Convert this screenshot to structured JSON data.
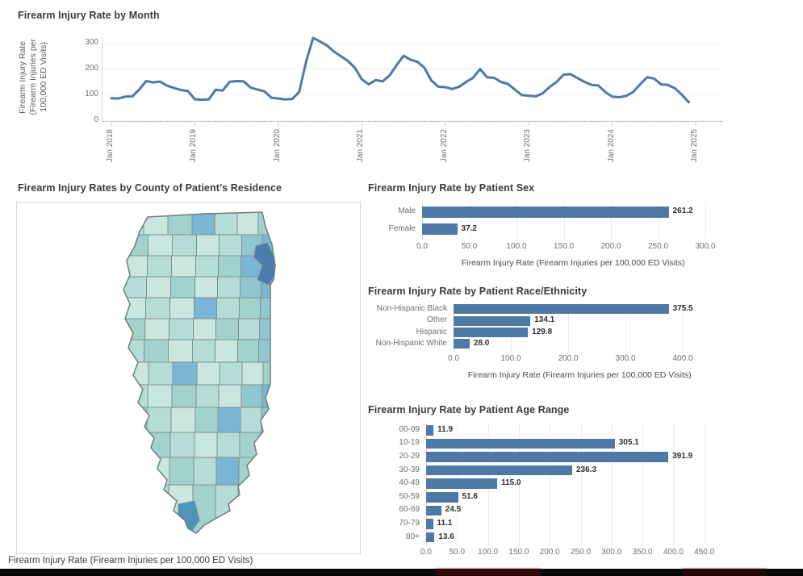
{
  "colors": {
    "accent": "#4e79a7",
    "line": "#4e79a7",
    "bar": "#4e79a7",
    "grid": "#ebebeb",
    "axis_line": "#c9c9c9",
    "tick_text": "#707070",
    "title_text": "#3a3a3a",
    "map_border": "#7d9090",
    "map_outline": "#6b7d7d",
    "map_palette": [
      "#d8eee7",
      "#c9e6df",
      "#b5dcd6",
      "#a3d2cd",
      "#8fc6cf",
      "#7cb6d6",
      "#5b9cc6",
      "#4a7cb0"
    ],
    "cook_fill": "#4a7cb0",
    "south_tip_fill": "#4f94bd",
    "bottom_bar": "#070707",
    "smudge_red": "#3a0a0c"
  },
  "chart_data": [
    {
      "type": "line",
      "title": "Firearm Injury Rate by Month",
      "ylabel_lines": [
        "Firearm Injury Rate",
        "(Firearm Injuries per",
        "100,000 ED Visits)"
      ],
      "y_ticks": [
        0,
        100,
        200,
        300
      ],
      "ylim": [
        0,
        340
      ],
      "x_tick_labels": [
        "Jan 2018",
        "Jan 2019",
        "Jan 2020",
        "Jan 2021",
        "Jan 2022",
        "Jan 2023",
        "Jan 2024",
        "Jan 2025"
      ],
      "start": "Jan 2018",
      "end": "Dec 2024",
      "values": [
        86,
        85,
        92,
        93,
        120,
        153,
        148,
        151,
        135,
        126,
        118,
        114,
        82,
        80,
        81,
        119,
        116,
        150,
        153,
        152,
        128,
        120,
        113,
        88,
        85,
        81,
        83,
        110,
        230,
        322,
        308,
        292,
        268,
        250,
        232,
        205,
        160,
        140,
        157,
        152,
        175,
        215,
        252,
        237,
        228,
        205,
        155,
        131,
        129,
        122,
        131,
        150,
        166,
        200,
        168,
        166,
        150,
        142,
        120,
        98,
        96,
        93,
        105,
        130,
        150,
        178,
        180,
        165,
        150,
        138,
        136,
        110,
        92,
        90,
        95,
        110,
        140,
        168,
        163,
        140,
        138,
        125,
        100,
        70
      ]
    },
    {
      "type": "bar",
      "orientation": "horizontal",
      "title": "Firearm Injury Rate by Patient Sex",
      "categories": [
        "Male",
        "Female"
      ],
      "values": [
        261.2,
        37.2
      ],
      "x_ticks": [
        0,
        50,
        100,
        150,
        200,
        250,
        300
      ],
      "xlim": [
        0,
        320
      ],
      "xlabel": "Firearm Injury Rate (Firearm Injuries per 100,000 ED Visits)"
    },
    {
      "type": "bar",
      "orientation": "horizontal",
      "title": "Firearm Injury Rate by Patient Race/Ethnicity",
      "categories": [
        "Non-Hispanic Black",
        "Other",
        "Hispanic",
        "Non-Hispanic White"
      ],
      "values": [
        375.5,
        134.1,
        129.8,
        28.0
      ],
      "x_ticks": [
        0,
        100,
        200,
        300,
        400
      ],
      "xlim": [
        0,
        440
      ],
      "xlabel": "Firearm Injury Rate (Firearm Injuries per 100,000 ED Visits)"
    },
    {
      "type": "bar",
      "orientation": "horizontal",
      "title": "Firearm Injury Rate by Patient Age Range",
      "categories": [
        "00-09",
        "10-19",
        "20-29",
        "30-39",
        "40-49",
        "50-59",
        "60-69",
        "70-79",
        "80+"
      ],
      "values": [
        11.9,
        305.1,
        391.9,
        236.3,
        115.0,
        51.6,
        24.5,
        11.1,
        13.6
      ],
      "x_ticks": [
        0,
        50,
        100,
        150,
        200,
        250,
        300,
        350,
        400,
        450
      ],
      "xlim": [
        0,
        465
      ],
      "xlabel": ""
    },
    {
      "type": "choropleth",
      "title": "Firearm Injury Rates by County of Patient’s Residence",
      "caption": "Firearm Injury Rate (Firearm Injuries per 100,000 ED Visits)",
      "region": "Illinois counties",
      "shading_note": "darkest county in the northeast (Chicago area) and a dark county at the southern tip",
      "county_grid": [
        [
          2,
          1,
          3,
          5,
          2,
          1,
          3
        ],
        [
          3,
          1,
          2,
          1,
          2,
          4,
          5
        ],
        [
          1,
          2,
          1,
          2,
          3,
          5,
          6
        ],
        [
          2,
          1,
          3,
          1,
          2,
          4,
          5
        ],
        [
          1,
          2,
          1,
          5,
          2,
          3,
          4
        ],
        [
          3,
          1,
          2,
          1,
          3,
          2,
          4
        ],
        [
          2,
          3,
          1,
          2,
          1,
          3,
          4
        ],
        [
          1,
          2,
          5,
          1,
          2,
          1,
          3
        ],
        [
          2,
          1,
          3,
          2,
          1,
          4,
          5
        ],
        [
          3,
          2,
          1,
          3,
          5,
          2,
          4
        ],
        [
          1,
          3,
          2,
          1,
          2,
          3,
          2
        ],
        [
          2,
          1,
          3,
          2,
          5,
          3,
          2
        ],
        [
          1,
          2,
          1,
          3,
          2,
          1,
          2
        ]
      ]
    }
  ]
}
